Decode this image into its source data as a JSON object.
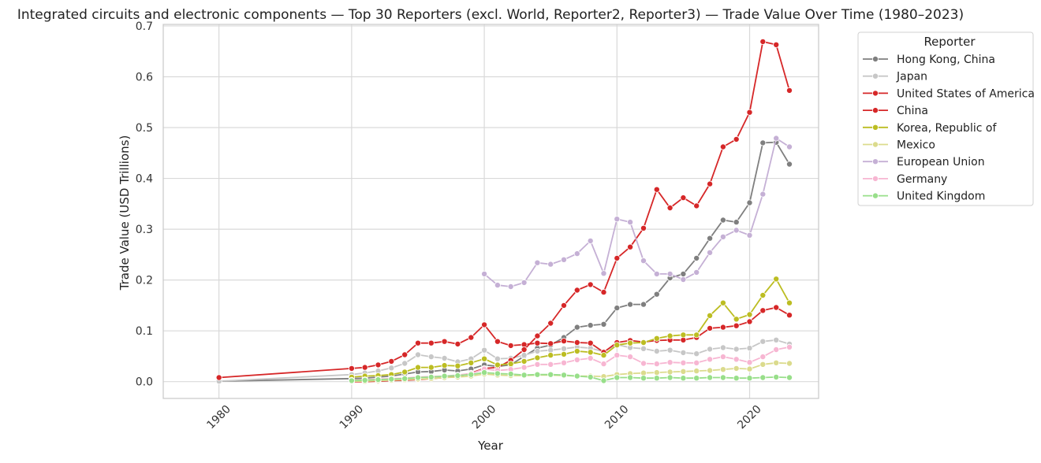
{
  "chart_data": {
    "type": "line",
    "title": "Integrated circuits and electronic components — Top 30 Reporters (excl. World, Reporter2, Reporter3) — Trade Value Over Time (1980–2023)",
    "xlabel": "Year",
    "ylabel": "Trade Value (USD Trillions)",
    "xlim": [
      1975.8,
      2025.2
    ],
    "ylim": [
      -0.033,
      0.703
    ],
    "x_ticks": [
      1980,
      1990,
      2000,
      2010,
      2020
    ],
    "y_ticks": [
      0.0,
      0.1,
      0.2,
      0.3,
      0.4,
      0.5,
      0.6,
      0.7
    ],
    "y_tick_labels": [
      "0.0",
      "0.1",
      "0.2",
      "0.3",
      "0.4",
      "0.5",
      "0.6",
      "0.7"
    ],
    "grid": true,
    "legend": {
      "title": "Reporter",
      "placement": "outside-right"
    },
    "series": [
      {
        "name": "Hong Kong, China",
        "color": "#7f7f7f",
        "x": [
          1980,
          1990,
          1991,
          1992,
          1993,
          1994,
          1995,
          1996,
          1997,
          1998,
          1999,
          2000,
          2001,
          2002,
          2003,
          2004,
          2005,
          2006,
          2007,
          2008,
          2009,
          2010,
          2011,
          2012,
          2013,
          2014,
          2015,
          2016,
          2017,
          2018,
          2019,
          2020,
          2021,
          2022,
          2023
        ],
        "values": [
          0.001,
          0.006,
          0.007,
          0.009,
          0.011,
          0.015,
          0.019,
          0.02,
          0.023,
          0.021,
          0.025,
          0.033,
          0.03,
          0.033,
          0.05,
          0.066,
          0.072,
          0.087,
          0.107,
          0.111,
          0.113,
          0.145,
          0.152,
          0.152,
          0.172,
          0.204,
          0.212,
          0.243,
          0.282,
          0.318,
          0.314,
          0.352,
          0.47,
          0.471,
          0.428
        ]
      },
      {
        "name": "Japan",
        "color": "#c7c7c7",
        "x": [
          1980,
          1990,
          1991,
          1992,
          1993,
          1994,
          1995,
          1996,
          1997,
          1998,
          1999,
          2000,
          2001,
          2002,
          2003,
          2004,
          2005,
          2006,
          2007,
          2008,
          2009,
          2010,
          2011,
          2012,
          2013,
          2014,
          2015,
          2016,
          2017,
          2018,
          2019,
          2020,
          2021,
          2022,
          2023
        ],
        "values": [
          0.001,
          0.014,
          0.017,
          0.021,
          0.027,
          0.036,
          0.053,
          0.049,
          0.046,
          0.039,
          0.045,
          0.062,
          0.045,
          0.046,
          0.052,
          0.06,
          0.062,
          0.065,
          0.068,
          0.066,
          0.059,
          0.073,
          0.067,
          0.065,
          0.06,
          0.062,
          0.057,
          0.055,
          0.064,
          0.067,
          0.064,
          0.066,
          0.079,
          0.082,
          0.074
        ]
      },
      {
        "name": "United States of America",
        "color": "#d62728",
        "x": [
          1980,
          1990,
          1991,
          1992,
          1993,
          1994,
          1995,
          1996,
          1997,
          1998,
          1999,
          2000,
          2001,
          2002,
          2003,
          2004,
          2005,
          2006,
          2007,
          2008,
          2009,
          2010,
          2011,
          2012,
          2013,
          2014,
          2015,
          2016,
          2017,
          2018,
          2019,
          2020,
          2021,
          2022,
          2023
        ],
        "values": [
          0.008,
          0.026,
          0.028,
          0.033,
          0.04,
          0.053,
          0.076,
          0.076,
          0.079,
          0.074,
          0.087,
          0.112,
          0.079,
          0.071,
          0.073,
          0.076,
          0.075,
          0.08,
          0.077,
          0.076,
          0.058,
          0.077,
          0.081,
          0.078,
          0.081,
          0.082,
          0.082,
          0.087,
          0.105,
          0.107,
          0.11,
          0.118,
          0.14,
          0.146,
          0.131
        ]
      },
      {
        "name": "China",
        "color": "#d62728",
        "x": [
          1990,
          1991,
          1992,
          1993,
          1994,
          1995,
          1996,
          1997,
          1998,
          1999,
          2000,
          2001,
          2002,
          2003,
          2004,
          2005,
          2006,
          2007,
          2008,
          2009,
          2010,
          2011,
          2012,
          2013,
          2014,
          2015,
          2016,
          2017,
          2018,
          2019,
          2020,
          2021,
          2022,
          2023
        ],
        "values": [
          0.0,
          0.0,
          0.001,
          0.002,
          0.003,
          0.004,
          0.006,
          0.008,
          0.01,
          0.017,
          0.026,
          0.028,
          0.042,
          0.063,
          0.09,
          0.115,
          0.15,
          0.18,
          0.191,
          0.176,
          0.243,
          0.265,
          0.302,
          0.378,
          0.342,
          0.362,
          0.346,
          0.389,
          0.462,
          0.477,
          0.53,
          0.669,
          0.663,
          0.573
        ]
      },
      {
        "name": "Korea, Republic of",
        "color": "#bcbd22",
        "x": [
          1990,
          1991,
          1992,
          1993,
          1994,
          1995,
          1996,
          1997,
          1998,
          1999,
          2000,
          2001,
          2002,
          2003,
          2004,
          2005,
          2006,
          2007,
          2008,
          2009,
          2010,
          2011,
          2012,
          2013,
          2014,
          2015,
          2016,
          2017,
          2018,
          2019,
          2020,
          2021,
          2022,
          2023
        ],
        "values": [
          0.009,
          0.011,
          0.012,
          0.014,
          0.019,
          0.028,
          0.028,
          0.032,
          0.031,
          0.037,
          0.045,
          0.033,
          0.035,
          0.04,
          0.047,
          0.052,
          0.054,
          0.06,
          0.058,
          0.052,
          0.072,
          0.076,
          0.077,
          0.085,
          0.09,
          0.092,
          0.092,
          0.13,
          0.155,
          0.123,
          0.132,
          0.17,
          0.202,
          0.155
        ]
      },
      {
        "name": "Mexico",
        "color": "#dbdb8d",
        "x": [
          1990,
          1991,
          1992,
          1993,
          1994,
          1995,
          1996,
          1997,
          1998,
          1999,
          2000,
          2001,
          2002,
          2003,
          2004,
          2005,
          2006,
          2007,
          2008,
          2009,
          2010,
          2011,
          2012,
          2013,
          2014,
          2015,
          2016,
          2017,
          2018,
          2019,
          2020,
          2021,
          2022,
          2023
        ],
        "values": [
          0.001,
          0.001,
          0.002,
          0.003,
          0.004,
          0.005,
          0.006,
          0.008,
          0.009,
          0.011,
          0.015,
          0.013,
          0.012,
          0.012,
          0.013,
          0.013,
          0.012,
          0.011,
          0.011,
          0.01,
          0.014,
          0.016,
          0.017,
          0.018,
          0.019,
          0.02,
          0.021,
          0.022,
          0.024,
          0.026,
          0.025,
          0.034,
          0.037,
          0.036
        ]
      },
      {
        "name": "European Union",
        "color": "#c5b0d5",
        "x": [
          2000,
          2001,
          2002,
          2003,
          2004,
          2005,
          2006,
          2007,
          2008,
          2009,
          2010,
          2011,
          2012,
          2013,
          2014,
          2015,
          2016,
          2017,
          2018,
          2019,
          2020,
          2021,
          2022,
          2023
        ],
        "values": [
          0.212,
          0.19,
          0.187,
          0.195,
          0.234,
          0.231,
          0.24,
          0.252,
          0.277,
          0.213,
          0.32,
          0.314,
          0.238,
          0.212,
          0.212,
          0.201,
          0.215,
          0.254,
          0.285,
          0.298,
          0.288,
          0.369,
          0.479,
          0.462
        ]
      },
      {
        "name": "Germany",
        "color": "#f7b6d2",
        "x": [
          1990,
          1991,
          1992,
          1993,
          1994,
          1995,
          1996,
          1997,
          1998,
          1999,
          2000,
          2001,
          2002,
          2003,
          2004,
          2005,
          2006,
          2007,
          2008,
          2009,
          2010,
          2011,
          2012,
          2013,
          2014,
          2015,
          2016,
          2017,
          2018,
          2019,
          2020,
          2021,
          2022,
          2023
        ],
        "values": [
          0.003,
          0.004,
          0.005,
          0.006,
          0.007,
          0.009,
          0.01,
          0.011,
          0.013,
          0.016,
          0.025,
          0.022,
          0.024,
          0.028,
          0.034,
          0.034,
          0.037,
          0.043,
          0.046,
          0.035,
          0.052,
          0.049,
          0.036,
          0.035,
          0.038,
          0.037,
          0.037,
          0.044,
          0.049,
          0.044,
          0.038,
          0.049,
          0.063,
          0.068
        ]
      },
      {
        "name": "United Kingdom",
        "color": "#98df8a",
        "x": [
          1990,
          1991,
          1992,
          1993,
          1994,
          1995,
          1996,
          1997,
          1998,
          1999,
          2000,
          2001,
          2002,
          2003,
          2004,
          2005,
          2006,
          2007,
          2008,
          2009,
          2010,
          2011,
          2012,
          2013,
          2014,
          2015,
          2016,
          2017,
          2018,
          2019,
          2020,
          2021,
          2022,
          2023
        ],
        "values": [
          0.002,
          0.003,
          0.004,
          0.005,
          0.006,
          0.008,
          0.009,
          0.011,
          0.012,
          0.014,
          0.018,
          0.016,
          0.015,
          0.013,
          0.014,
          0.014,
          0.013,
          0.011,
          0.009,
          0.002,
          0.008,
          0.008,
          0.007,
          0.007,
          0.008,
          0.007,
          0.007,
          0.008,
          0.008,
          0.007,
          0.007,
          0.008,
          0.009,
          0.008
        ]
      }
    ]
  }
}
